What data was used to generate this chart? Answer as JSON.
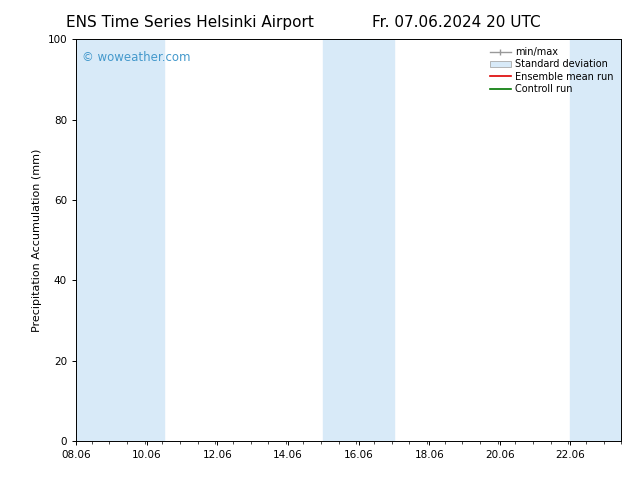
{
  "title_left": "ENS Time Series Helsinki Airport",
  "title_right": "Fr. 07.06.2024 20 UTC",
  "ylabel": "Precipitation Accumulation (mm)",
  "xlim": [
    8.06,
    23.5
  ],
  "ylim": [
    0,
    100
  ],
  "yticks": [
    0,
    20,
    40,
    60,
    80,
    100
  ],
  "xticks": [
    8.06,
    10.06,
    12.06,
    14.06,
    16.06,
    18.06,
    20.06,
    22.06
  ],
  "xticklabels": [
    "08.06",
    "10.06",
    "12.06",
    "14.06",
    "16.06",
    "18.06",
    "20.06",
    "22.06"
  ],
  "bg_color": "#ffffff",
  "plot_bg_color": "#ffffff",
  "shaded_bands": [
    [
      8.06,
      9.06
    ],
    [
      9.06,
      10.56
    ],
    [
      15.06,
      17.06
    ],
    [
      22.06,
      23.5
    ]
  ],
  "band_color": "#d8eaf8",
  "watermark_text": "© woweather.com",
  "watermark_color": "#4499cc",
  "legend_labels": [
    "min/max",
    "Standard deviation",
    "Ensemble mean run",
    "Controll run"
  ],
  "title_fontsize": 11,
  "axis_label_fontsize": 8,
  "tick_fontsize": 7.5
}
